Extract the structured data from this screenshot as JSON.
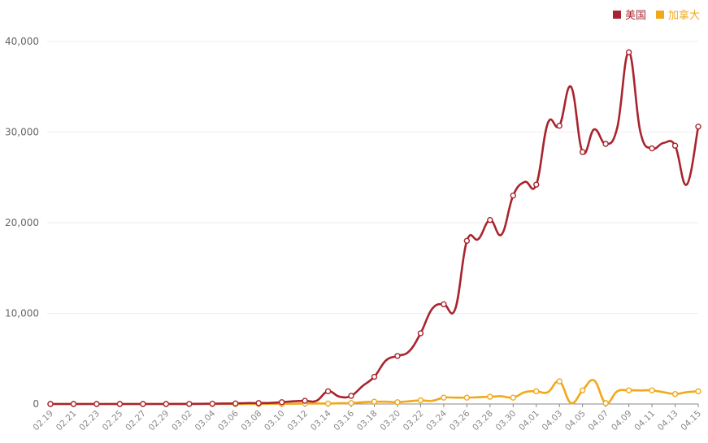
{
  "chart_data": {
    "type": "line",
    "x": [
      "02.19",
      "02.20",
      "02.21",
      "02.22",
      "02.23",
      "02.24",
      "02.25",
      "02.26",
      "02.27",
      "02.28",
      "02.29",
      "03.01",
      "03.02",
      "03.03",
      "03.04",
      "03.05",
      "03.06",
      "03.07",
      "03.08",
      "03.09",
      "03.10",
      "03.11",
      "03.12",
      "03.13",
      "03.14",
      "03.15",
      "03.16",
      "03.17",
      "03.18",
      "03.19",
      "03.20",
      "03.21",
      "03.22",
      "03.23",
      "03.24",
      "03.25",
      "03.26",
      "03.27",
      "03.28",
      "03.29",
      "03.30",
      "03.31",
      "04.01",
      "04.02",
      "04.03",
      "04.04",
      "04.05",
      "04.06",
      "04.07",
      "04.08",
      "04.09",
      "04.10",
      "04.11",
      "04.12",
      "04.13",
      "04.14",
      "04.15"
    ],
    "x_tick_labels": [
      "02.19",
      "02.21",
      "02.23",
      "02.25",
      "02.27",
      "02.29",
      "03.02",
      "03.04",
      "03.06",
      "03.08",
      "03.10",
      "03.12",
      "03.14",
      "03.16",
      "03.18",
      "03.20",
      "03.22",
      "03.24",
      "03.26",
      "03.28",
      "03.30",
      "04.01",
      "04.03",
      "04.05",
      "04.07",
      "04.09",
      "04.11",
      "04.13",
      "04.15"
    ],
    "x_tick_label_index": [
      0,
      2,
      4,
      6,
      8,
      10,
      12,
      14,
      16,
      18,
      20,
      22,
      24,
      26,
      28,
      30,
      32,
      34,
      36,
      38,
      40,
      42,
      44,
      46,
      48,
      50,
      52,
      54,
      56
    ],
    "series": [
      {
        "name": "美国",
        "color": "#a8242e",
        "values": [
          0,
          0,
          0,
          0,
          0,
          0,
          0,
          0,
          0,
          0,
          0,
          10,
          10,
          20,
          30,
          50,
          60,
          100,
          100,
          120,
          200,
          300,
          350,
          350,
          1400,
          800,
          900,
          2000,
          3000,
          4800,
          5300,
          5800,
          7800,
          10500,
          11000,
          10500,
          18000,
          18200,
          20300,
          18700,
          23000,
          24500,
          24200,
          31000,
          30700,
          35000,
          27800,
          30300,
          28700,
          30500,
          38800,
          30000,
          28200,
          28800,
          28500,
          24200,
          30600
        ],
        "marker_index": [
          0,
          2,
          4,
          6,
          8,
          10,
          12,
          14,
          16,
          18,
          20,
          22,
          24,
          26,
          28,
          30,
          32,
          34,
          36,
          38,
          40,
          42,
          44,
          46,
          48,
          50,
          52,
          54,
          56
        ]
      },
      {
        "name": "加拿大",
        "color": "#f1a81b",
        "values": [
          0,
          0,
          0,
          0,
          0,
          0,
          0,
          0,
          0,
          0,
          0,
          0,
          0,
          0,
          0,
          0,
          0,
          10,
          10,
          20,
          20,
          30,
          50,
          50,
          50,
          80,
          100,
          200,
          250,
          250,
          200,
          300,
          400,
          350,
          700,
          700,
          700,
          750,
          800,
          850,
          700,
          1300,
          1400,
          1300,
          2500,
          100,
          1500,
          2600,
          100,
          1400,
          1500,
          1500,
          1500,
          1300,
          1100,
          1300,
          1400
        ],
        "marker_index": [
          0,
          2,
          4,
          6,
          8,
          10,
          12,
          14,
          16,
          18,
          20,
          22,
          24,
          26,
          28,
          30,
          32,
          34,
          36,
          38,
          40,
          42,
          44,
          46,
          48,
          50,
          52,
          54,
          56
        ]
      }
    ],
    "ylim": [
      0,
      40000
    ],
    "y_ticks": [
      0,
      10000,
      20000,
      30000,
      40000
    ],
    "y_tick_labels": [
      "0",
      "10,000",
      "20,000",
      "30,000",
      "40,000"
    ],
    "grid": true,
    "legend_position": "top-right",
    "title": "",
    "xlabel": "",
    "ylabel": ""
  },
  "legend": [
    {
      "label": "美国",
      "color": "#a8242e"
    },
    {
      "label": "加拿大",
      "color": "#f1a81b"
    }
  ]
}
